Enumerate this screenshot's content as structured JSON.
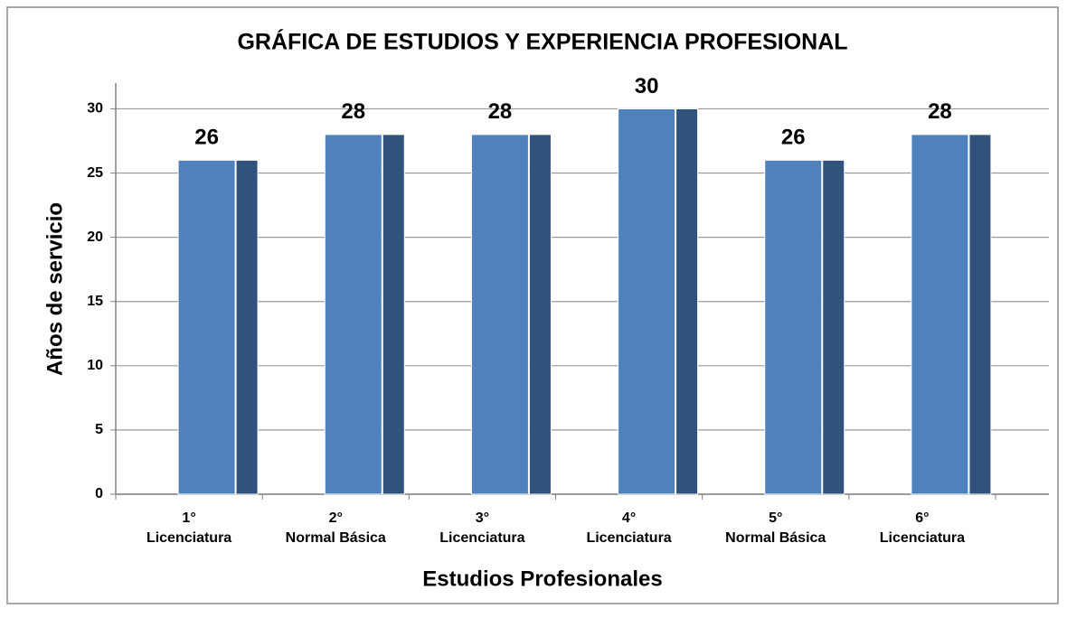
{
  "chart_data": {
    "type": "bar",
    "title": "GRÁFICA DE ESTUDIOS Y EXPERIENCIA PROFESIONAL",
    "x_label": "Estudios Profesionales",
    "y_label": "Años de servicio",
    "categories": [
      [
        "1°",
        "Licenciatura"
      ],
      [
        "2°",
        "Normal Básica"
      ],
      [
        "3°",
        "Licenciatura"
      ],
      [
        "4°",
        "Licenciatura"
      ],
      [
        "5°",
        "Normal Básica"
      ],
      [
        "6°",
        "Licenciatura"
      ]
    ],
    "values": [
      26,
      28,
      28,
      30,
      26,
      28
    ],
    "color": "#4f81bd",
    "ylim": [
      0,
      32
    ],
    "yticks": [
      0,
      5,
      10,
      15,
      20,
      25,
      30
    ],
    "grid": true
  }
}
